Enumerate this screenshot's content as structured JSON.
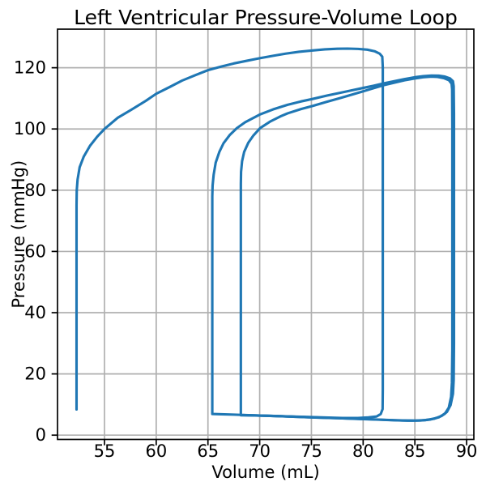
{
  "chart_data": {
    "type": "line",
    "title": "Left Ventricular Pressure-Volume Loop",
    "xlabel": "Volume (mL)",
    "ylabel": "Pressure (mmHg)",
    "xlim": [
      50.46,
      90.7
    ],
    "ylim": [
      -1.4,
      132.6
    ],
    "xticks": [
      55,
      60,
      65,
      70,
      75,
      80,
      85,
      90
    ],
    "xtick_labels": [
      "55",
      "60",
      "65",
      "70",
      "75",
      "80",
      "85",
      "90"
    ],
    "yticks": [
      0,
      20,
      40,
      60,
      80,
      100,
      120
    ],
    "ytick_labels": [
      "0",
      "20",
      "40",
      "60",
      "80",
      "100",
      "120"
    ],
    "grid": true,
    "legend_position": "none",
    "line_color": "#1f77b4",
    "grid_color": "#b0b0b0",
    "spine_color": "#000000",
    "series": [
      {
        "name": "loop-1",
        "points": [
          [
            52.3,
            8.4
          ],
          [
            52.3,
            30
          ],
          [
            52.3,
            55
          ],
          [
            52.3,
            75
          ],
          [
            52.32,
            80
          ],
          [
            52.4,
            83.5
          ],
          [
            52.6,
            87.5
          ],
          [
            53.0,
            91.0
          ],
          [
            53.6,
            94.5
          ],
          [
            54.3,
            97.5
          ],
          [
            55.0,
            100.0
          ],
          [
            56.3,
            103.7
          ],
          [
            57.6,
            106.3
          ],
          [
            59.0,
            109.2
          ],
          [
            60.0,
            111.5
          ],
          [
            61.3,
            113.7
          ],
          [
            62.5,
            115.8
          ],
          [
            63.8,
            117.6
          ],
          [
            65.0,
            119.2
          ],
          [
            66.3,
            120.4
          ],
          [
            67.5,
            121.4
          ],
          [
            68.8,
            122.3
          ],
          [
            70.0,
            123.1
          ],
          [
            71.3,
            123.9
          ],
          [
            72.5,
            124.6
          ],
          [
            73.8,
            125.2
          ],
          [
            75.0,
            125.6
          ],
          [
            76.3,
            126.0
          ],
          [
            77.5,
            126.2
          ],
          [
            78.5,
            126.25
          ],
          [
            79.5,
            126.15
          ],
          [
            80.4,
            125.9
          ],
          [
            81.1,
            125.4
          ],
          [
            81.6,
            124.6
          ],
          [
            81.85,
            123.6
          ],
          [
            81.9,
            120
          ],
          [
            81.9,
            100
          ],
          [
            81.9,
            70
          ],
          [
            81.9,
            40
          ],
          [
            81.9,
            15
          ],
          [
            81.88,
            8.5
          ],
          [
            81.7,
            6.9
          ],
          [
            81.3,
            6.1
          ],
          [
            80.5,
            5.8
          ],
          [
            79.5,
            5.6
          ],
          [
            78.0,
            5.6
          ],
          [
            76.0,
            5.8
          ],
          [
            74.0,
            6.0
          ],
          [
            72.0,
            6.2
          ],
          [
            70.0,
            6.4
          ],
          [
            69.0,
            6.5
          ],
          [
            68.4,
            6.55
          ]
        ]
      },
      {
        "name": "loop-2",
        "points": [
          [
            65.42,
            6.9
          ],
          [
            65.42,
            15
          ],
          [
            65.42,
            35
          ],
          [
            65.42,
            55
          ],
          [
            65.42,
            70
          ],
          [
            65.42,
            78
          ],
          [
            65.45,
            81.5
          ],
          [
            65.55,
            85.0
          ],
          [
            65.75,
            89.0
          ],
          [
            66.1,
            92.5
          ],
          [
            66.5,
            95.3
          ],
          [
            67.1,
            98.0
          ],
          [
            67.8,
            100.3
          ],
          [
            68.6,
            102.2
          ],
          [
            70.0,
            104.7
          ],
          [
            71.3,
            106.4
          ],
          [
            72.7,
            107.9
          ],
          [
            74.0,
            109.0
          ],
          [
            75.1,
            109.8
          ],
          [
            76.5,
            110.9
          ],
          [
            77.9,
            111.9
          ],
          [
            79.0,
            112.7
          ],
          [
            80.0,
            113.4
          ],
          [
            81.0,
            114.1
          ],
          [
            82.0,
            114.9
          ],
          [
            83.0,
            115.6
          ],
          [
            84.0,
            116.3
          ],
          [
            85.0,
            116.9
          ],
          [
            85.8,
            117.25
          ],
          [
            86.6,
            117.45
          ],
          [
            87.3,
            117.4
          ],
          [
            87.9,
            117.1
          ],
          [
            88.4,
            116.5
          ],
          [
            88.68,
            115.6
          ],
          [
            88.75,
            114
          ],
          [
            88.78,
            105
          ],
          [
            88.78,
            80
          ],
          [
            88.78,
            55
          ],
          [
            88.78,
            30
          ],
          [
            88.75,
            18
          ],
          [
            88.68,
            13.5
          ],
          [
            88.45,
            9.8
          ],
          [
            88.1,
            7.6
          ],
          [
            87.6,
            6.3
          ],
          [
            86.9,
            5.4
          ],
          [
            86.0,
            4.9
          ],
          [
            85.0,
            4.75
          ],
          [
            83.8,
            4.8
          ],
          [
            82.5,
            4.95
          ],
          [
            81.0,
            5.15
          ],
          [
            79.0,
            5.4
          ],
          [
            77.0,
            5.6
          ],
          [
            75.0,
            5.8
          ],
          [
            73.0,
            6.05
          ],
          [
            71.0,
            6.3
          ],
          [
            69.2,
            6.5
          ],
          [
            67.5,
            6.7
          ],
          [
            66.3,
            6.82
          ],
          [
            65.7,
            6.88
          ],
          [
            65.42,
            6.9
          ]
        ]
      },
      {
        "name": "loop-3",
        "points": [
          [
            68.18,
            6.5
          ],
          [
            68.18,
            15
          ],
          [
            68.18,
            35
          ],
          [
            68.18,
            55
          ],
          [
            68.18,
            72
          ],
          [
            68.18,
            82
          ],
          [
            68.2,
            86.0
          ],
          [
            68.3,
            89.5
          ],
          [
            68.5,
            92.5
          ],
          [
            68.9,
            95.5
          ],
          [
            69.4,
            97.9
          ],
          [
            70.05,
            100.3
          ],
          [
            71.0,
            102.4
          ],
          [
            72.0,
            104.1
          ],
          [
            72.7,
            105.1
          ],
          [
            74.0,
            106.5
          ],
          [
            75.1,
            107.5
          ],
          [
            76.5,
            108.9
          ],
          [
            77.9,
            110.2
          ],
          [
            79.0,
            111.3
          ],
          [
            80.0,
            112.3
          ],
          [
            81.0,
            113.3
          ],
          [
            82.0,
            114.3
          ],
          [
            83.0,
            115.1
          ],
          [
            84.0,
            115.9
          ],
          [
            85.0,
            116.5
          ],
          [
            85.8,
            116.9
          ],
          [
            86.6,
            117.1
          ],
          [
            87.2,
            117.0
          ],
          [
            87.8,
            116.6
          ],
          [
            88.3,
            115.9
          ],
          [
            88.55,
            114.8
          ],
          [
            88.6,
            113
          ],
          [
            88.62,
            100
          ],
          [
            88.62,
            75
          ],
          [
            88.62,
            50
          ],
          [
            88.62,
            28
          ],
          [
            88.58,
            17
          ],
          [
            88.5,
            12.5
          ],
          [
            88.28,
            9.0
          ],
          [
            87.9,
            7.0
          ],
          [
            87.3,
            5.8
          ],
          [
            86.5,
            5.1
          ],
          [
            85.5,
            4.75
          ],
          [
            84.3,
            4.72
          ],
          [
            83.0,
            4.85
          ],
          [
            81.5,
            5.05
          ],
          [
            79.5,
            5.3
          ],
          [
            77.5,
            5.55
          ],
          [
            75.5,
            5.75
          ],
          [
            73.5,
            6.0
          ],
          [
            71.5,
            6.25
          ],
          [
            70.0,
            6.38
          ],
          [
            69.0,
            6.45
          ],
          [
            68.18,
            6.5
          ]
        ]
      }
    ]
  }
}
